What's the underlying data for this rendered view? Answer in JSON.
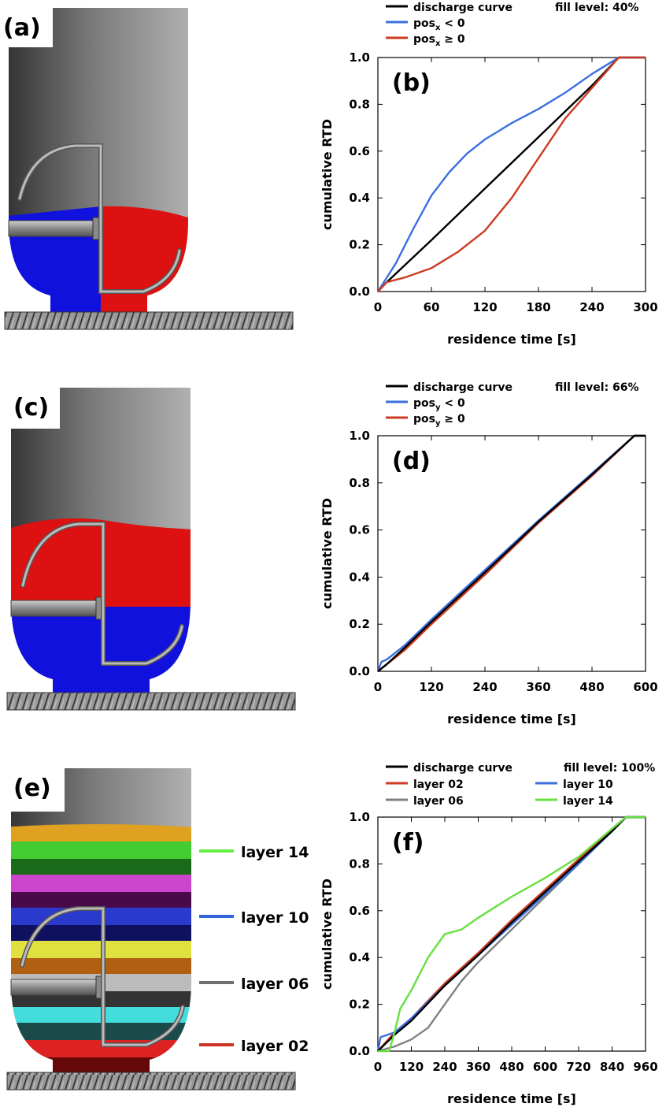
{
  "panels": {
    "a": {
      "tag": "(a)"
    },
    "c": {
      "tag": "(c)"
    },
    "e": {
      "tag": "(e)",
      "layer_legend": [
        {
          "label": "layer 14",
          "color": "#66ee44"
        },
        {
          "label": "layer 10",
          "color": "#3366dd"
        },
        {
          "label": "layer 06",
          "color": "#707070"
        },
        {
          "label": "layer 02",
          "color": "#cc3322"
        }
      ]
    }
  },
  "colors": {
    "blue_material": "#1111dd",
    "red_material": "#dd1111",
    "discharge": "#000000",
    "blue_series": "#3b6fe0",
    "red_series": "#cc3b22",
    "gray_series": "#808080",
    "green_series": "#66e040"
  },
  "chart_data": [
    {
      "id": "b",
      "type": "line",
      "tag": "(b)",
      "fill_label": "fill level: 40%",
      "xlabel": "residence time [s]",
      "ylabel": "cumulative RTD",
      "xlim": [
        0,
        300
      ],
      "ylim": [
        0,
        1.0
      ],
      "xticks": [
        "0",
        "60",
        "120",
        "180",
        "240",
        "300"
      ],
      "yticks": [
        "0.0",
        "0.2",
        "0.4",
        "0.6",
        "0.8",
        "1.0"
      ],
      "grid": false,
      "legend_position": "top",
      "series": [
        {
          "name": "discharge curve",
          "color": "#000000",
          "x": [
            0,
            10,
            60,
            120,
            180,
            240,
            270,
            300
          ],
          "y": [
            0,
            0.04,
            0.22,
            0.44,
            0.66,
            0.88,
            1.0,
            1.0
          ]
        },
        {
          "name": "pos_x < 0",
          "name_base": "pos",
          "name_sub": "x",
          "name_rest": " < 0",
          "color": "#3b6fe0",
          "x": [
            0,
            20,
            40,
            60,
            80,
            100,
            120,
            150,
            180,
            210,
            240,
            270,
            300
          ],
          "y": [
            0,
            0.12,
            0.27,
            0.41,
            0.51,
            0.59,
            0.65,
            0.72,
            0.78,
            0.85,
            0.93,
            1.0,
            1.0
          ]
        },
        {
          "name": "pos_x ≥ 0",
          "name_base": "pos",
          "name_sub": "x",
          "name_rest": " ≥ 0",
          "color": "#cc3b22",
          "x": [
            0,
            10,
            30,
            60,
            90,
            120,
            150,
            180,
            210,
            240,
            270,
            300
          ],
          "y": [
            0,
            0.04,
            0.06,
            0.1,
            0.17,
            0.26,
            0.4,
            0.57,
            0.74,
            0.87,
            1.0,
            1.0
          ]
        }
      ]
    },
    {
      "id": "d",
      "type": "line",
      "tag": "(d)",
      "fill_label": "fill level: 66%",
      "xlabel": "residence time [s]",
      "ylabel": "cumulative RTD",
      "xlim": [
        0,
        600
      ],
      "ylim": [
        0,
        1.0
      ],
      "xticks": [
        "0",
        "120",
        "240",
        "360",
        "480",
        "600"
      ],
      "yticks": [
        "0.0",
        "0.2",
        "0.4",
        "0.6",
        "0.8",
        "1.0"
      ],
      "grid": false,
      "legend_position": "top",
      "series": [
        {
          "name": "pos_y < 0",
          "name_base": "pos",
          "name_sub": "y",
          "name_rest": " < 0",
          "color": "#3b6fe0",
          "x": [
            0,
            8,
            20,
            60,
            120,
            240,
            360,
            480,
            575,
            600
          ],
          "y": [
            0,
            0.04,
            0.05,
            0.11,
            0.22,
            0.43,
            0.64,
            0.84,
            1.0,
            1.0
          ]
        },
        {
          "name": "pos_y ≥ 0",
          "name_base": "pos",
          "name_sub": "y",
          "name_rest": " ≥ 0",
          "color": "#cc3b22",
          "x": [
            0,
            20,
            60,
            120,
            240,
            360,
            480,
            575,
            600
          ],
          "y": [
            0,
            0.03,
            0.09,
            0.2,
            0.41,
            0.63,
            0.83,
            1.0,
            1.0
          ]
        },
        {
          "name": "discharge curve",
          "color": "#000000",
          "x": [
            0,
            20,
            60,
            120,
            240,
            360,
            480,
            575,
            600
          ],
          "y": [
            0,
            0.03,
            0.1,
            0.21,
            0.42,
            0.635,
            0.835,
            1.0,
            1.0
          ]
        }
      ]
    },
    {
      "id": "f",
      "type": "line",
      "tag": "(f)",
      "fill_label": "fill level: 100%",
      "xlabel": "residence time [s]",
      "ylabel": "cumulative RTD",
      "xlim": [
        0,
        960
      ],
      "ylim": [
        0,
        1.0
      ],
      "xticks": [
        "0",
        "120",
        "240",
        "360",
        "480",
        "600",
        "720",
        "840",
        "960"
      ],
      "yticks": [
        "0.0",
        "0.2",
        "0.4",
        "0.6",
        "0.8",
        "1.0"
      ],
      "grid": false,
      "legend_position": "top",
      "series": [
        {
          "name": "layer 06",
          "color": "#808080",
          "x": [
            0,
            60,
            120,
            180,
            240,
            300,
            360,
            480,
            600,
            720,
            840,
            890,
            960
          ],
          "y": [
            0,
            0.02,
            0.05,
            0.1,
            0.2,
            0.3,
            0.38,
            0.52,
            0.66,
            0.8,
            0.94,
            1.0,
            1.0
          ]
        },
        {
          "name": "layer 02",
          "color": "#cc3b22",
          "x": [
            0,
            60,
            120,
            240,
            360,
            480,
            600,
            720,
            840,
            890,
            960
          ],
          "y": [
            0,
            0.08,
            0.14,
            0.29,
            0.42,
            0.56,
            0.69,
            0.82,
            0.95,
            1.0,
            1.0
          ]
        },
        {
          "name": "layer 10",
          "color": "#3b6fe0",
          "x": [
            0,
            10,
            60,
            120,
            240,
            360,
            480,
            600,
            720,
            840,
            890,
            960
          ],
          "y": [
            0,
            0.06,
            0.08,
            0.14,
            0.28,
            0.41,
            0.54,
            0.67,
            0.8,
            0.94,
            1.0,
            1.0
          ]
        },
        {
          "name": "discharge curve",
          "color": "#000000",
          "x": [
            0,
            60,
            120,
            240,
            360,
            480,
            600,
            720,
            840,
            890,
            960
          ],
          "y": [
            0,
            0.07,
            0.13,
            0.28,
            0.41,
            0.55,
            0.68,
            0.81,
            0.94,
            1.0,
            1.0
          ]
        },
        {
          "name": "layer 14",
          "color": "#66e040",
          "x": [
            0,
            40,
            60,
            80,
            120,
            180,
            240,
            300,
            360,
            480,
            600,
            720,
            840,
            890,
            960
          ],
          "y": [
            0,
            0.0,
            0.08,
            0.18,
            0.26,
            0.4,
            0.5,
            0.52,
            0.57,
            0.66,
            0.74,
            0.83,
            0.95,
            1.0,
            1.0
          ]
        }
      ]
    }
  ]
}
